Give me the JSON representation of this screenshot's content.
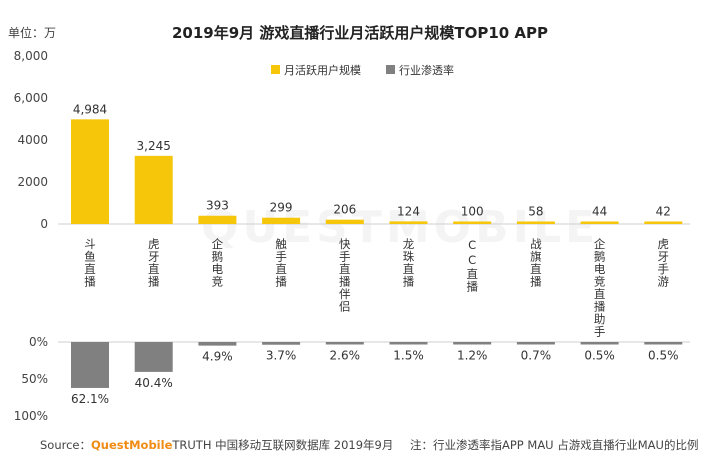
{
  "chart_data": {
    "type": "bar",
    "title": "2019年9月 游戏直播行业月活跃用户规模TOP10 APP",
    "unit_label": "单位：万",
    "categories": [
      "斗鱼直播",
      "虎牙直播",
      "企鹅电竞",
      "触手直播",
      "快手直播伴侣",
      "龙珠直播",
      "CC直播",
      "战旗直播",
      "企鹅电竞直播助手",
      "虎牙手游"
    ],
    "series": [
      {
        "name": "月活跃用户规模",
        "values": [
          4984,
          3245,
          393,
          299,
          206,
          124,
          100,
          58,
          44,
          42
        ],
        "labels": [
          "4,984",
          "3,245",
          "393",
          "299",
          "206",
          "124",
          "100",
          "58",
          "44",
          "42"
        ],
        "color": "#F5C60A"
      },
      {
        "name": "行业渗透率",
        "values": [
          62.1,
          40.4,
          4.9,
          3.7,
          2.6,
          1.5,
          1.2,
          0.7,
          0.5,
          0.5
        ],
        "labels": [
          "62.1%",
          "40.4%",
          "4.9%",
          "3.7%",
          "2.6%",
          "1.5%",
          "1.2%",
          "0.7%",
          "0.5%",
          "0.5%"
        ],
        "color": "#808080"
      }
    ],
    "y_upper": {
      "ticks": [
        0,
        2000,
        4000,
        6000,
        8000
      ],
      "tick_labels": [
        "0",
        "2000",
        "4000",
        "6,000",
        "8,000"
      ],
      "ylim": [
        0,
        8000
      ]
    },
    "y_lower": {
      "ticks": [
        0,
        50,
        100
      ],
      "tick_labels": [
        "0%",
        "50%",
        "100%"
      ],
      "ylim": [
        0,
        100
      ]
    },
    "legend_position": "top-center",
    "gridlines": false
  },
  "footer": {
    "source_prefix": "Source：",
    "brand": "QuestMobile",
    "source_text": "TRUTH 中国移动互联网数据库 2019年9月",
    "note": "注：行业渗透率指APP MAU 占游戏直播行业MAU的比例"
  },
  "watermark": "QUESTMOBILE"
}
